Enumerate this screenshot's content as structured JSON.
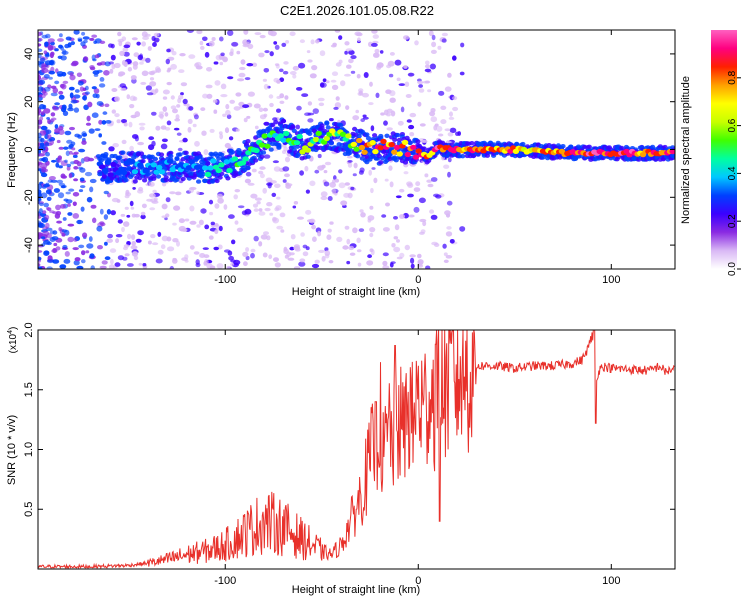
{
  "title": "C2E1.2026.101.05.08.R22",
  "chart_data": [
    {
      "type": "heatmap",
      "name": "spectrogram",
      "xlabel": "Height of straight line (km)",
      "ylabel": "Frequency (Hz)",
      "xlim": [
        -197,
        133
      ],
      "ylim": [
        -50,
        50
      ],
      "xticks": [
        -100,
        0,
        100
      ],
      "yticks": [
        -40,
        -20,
        0,
        20,
        40
      ],
      "colorbar": {
        "label": "Normalized spectral amplitude",
        "range": [
          0,
          1
        ],
        "ticks": [
          "0.0",
          "0.2",
          "0.4",
          "0.6",
          "0.8"
        ],
        "tick_values": [
          0,
          0.2,
          0.4,
          0.6,
          0.8
        ],
        "colors": [
          "#ffffff",
          "#d9b8f5",
          "#8a2be2",
          "#3b00ff",
          "#0040ff",
          "#00c8ff",
          "#00ffa0",
          "#40ff00",
          "#c8ff00",
          "#ffff00",
          "#ffa000",
          "#ff2000",
          "#ff0080",
          "#ff60c0"
        ]
      },
      "ridge": {
        "x": [
          -165,
          -150,
          -140,
          -130,
          -120,
          -110,
          -100,
          -95,
          -90,
          -85,
          -80,
          -75,
          -70,
          -65,
          -60,
          -55,
          -50,
          -45,
          -40,
          -35,
          -30,
          -25,
          -20,
          -15,
          -10,
          -5,
          0,
          5,
          10,
          15,
          20,
          30,
          40,
          50,
          60,
          70,
          80,
          90,
          100,
          110,
          120,
          133
        ],
        "freq": [
          -8,
          -7,
          -8,
          -7,
          -7,
          -8,
          -7,
          -5,
          -3,
          0,
          3,
          6,
          7,
          4,
          2,
          3,
          5,
          6,
          5,
          3,
          2,
          0,
          0,
          1,
          1,
          0,
          -1,
          -3,
          1,
          0,
          0,
          0,
          0,
          0,
          -0.5,
          -1,
          -1.5,
          -1.5,
          -1.5,
          -1.5,
          -1.5,
          -1.5
        ],
        "amplitude": [
          0.3,
          0.35,
          0.4,
          0.38,
          0.4,
          0.42,
          0.45,
          0.5,
          0.5,
          0.55,
          0.6,
          0.55,
          0.5,
          0.55,
          0.6,
          0.6,
          0.55,
          0.65,
          0.6,
          0.7,
          0.75,
          0.85,
          0.9,
          0.85,
          0.9,
          0.95,
          0.95,
          0.9,
          0.95,
          0.95,
          0.95,
          0.95,
          0.9,
          0.85,
          0.8,
          0.9,
          0.95,
          0.95,
          0.95,
          0.95,
          0.95,
          0.9
        ]
      }
    },
    {
      "type": "line",
      "name": "snr",
      "xlabel": "Height of straight line (km)",
      "ylabel": "SNR (10 * v/v)",
      "yscale_label": "(x10",
      "yscale_exp": "4",
      "xlim": [
        -197,
        133
      ],
      "ylim": [
        0,
        2.0
      ],
      "xticks": [
        -100,
        0,
        100
      ],
      "yticks": [
        "0.5",
        "1.0",
        "1.5",
        "2.0"
      ],
      "ytick_values": [
        0.5,
        1.0,
        1.5,
        2.0
      ],
      "color": "#e8302a",
      "x": [
        -197,
        -170,
        -150,
        -140,
        -130,
        -120,
        -110,
        -100,
        -95,
        -90,
        -85,
        -80,
        -75,
        -70,
        -65,
        -60,
        -55,
        -50,
        -45,
        -40,
        -35,
        -30,
        -25,
        -22,
        -20,
        -18,
        -15,
        -12,
        -10,
        -8,
        -5,
        -3,
        0,
        3,
        5,
        8,
        10,
        12,
        15,
        20,
        25,
        30,
        40,
        50,
        60,
        70,
        80,
        85,
        88,
        90,
        92,
        95,
        100,
        110,
        120,
        125,
        128,
        133
      ],
      "y": [
        0.02,
        0.02,
        0.03,
        0.05,
        0.08,
        0.12,
        0.15,
        0.2,
        0.25,
        0.3,
        0.35,
        0.4,
        0.38,
        0.35,
        0.3,
        0.25,
        0.2,
        0.15,
        0.12,
        0.2,
        0.4,
        0.6,
        0.9,
        1.1,
        1.3,
        0.9,
        1.2,
        1.0,
        1.3,
        1.1,
        1.4,
        1.2,
        1.45,
        1.3,
        1.5,
        1.45,
        1.55,
        1.5,
        1.6,
        1.65,
        1.68,
        1.7,
        1.7,
        1.68,
        1.7,
        1.7,
        1.72,
        1.75,
        1.85,
        1.95,
        1.6,
        1.7,
        1.68,
        1.67,
        1.66,
        1.7,
        1.65,
        1.68
      ],
      "spikes": [
        {
          "x": -12,
          "y": 1.87
        },
        {
          "x": -22,
          "y": 1.4
        },
        {
          "x": 9,
          "y": 1.88
        },
        {
          "x": 11,
          "y": 0.4
        },
        {
          "x": 91,
          "y": 2.0
        },
        {
          "x": 92,
          "y": 1.22
        }
      ]
    }
  ]
}
